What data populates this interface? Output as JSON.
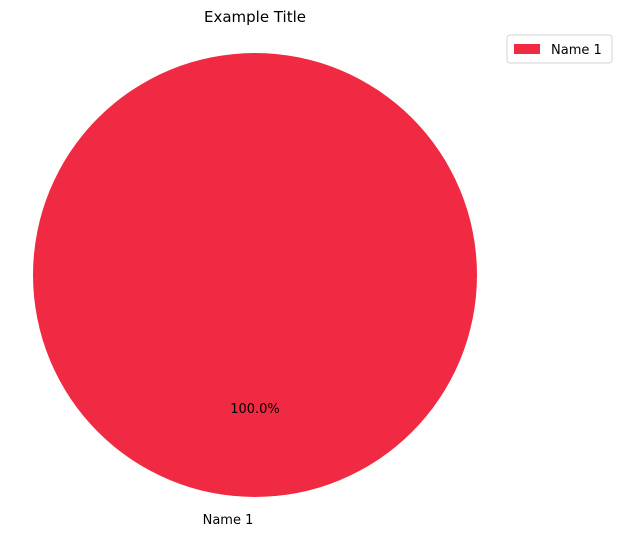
{
  "chart_data": {
    "type": "pie",
    "title": "Example Title",
    "slices": [
      {
        "label": "Name 1",
        "value": 100,
        "percent_label": "100.0%",
        "color": "#f02a42"
      }
    ],
    "legend": {
      "placement": "top-right",
      "entries": [
        "Name 1"
      ]
    }
  }
}
